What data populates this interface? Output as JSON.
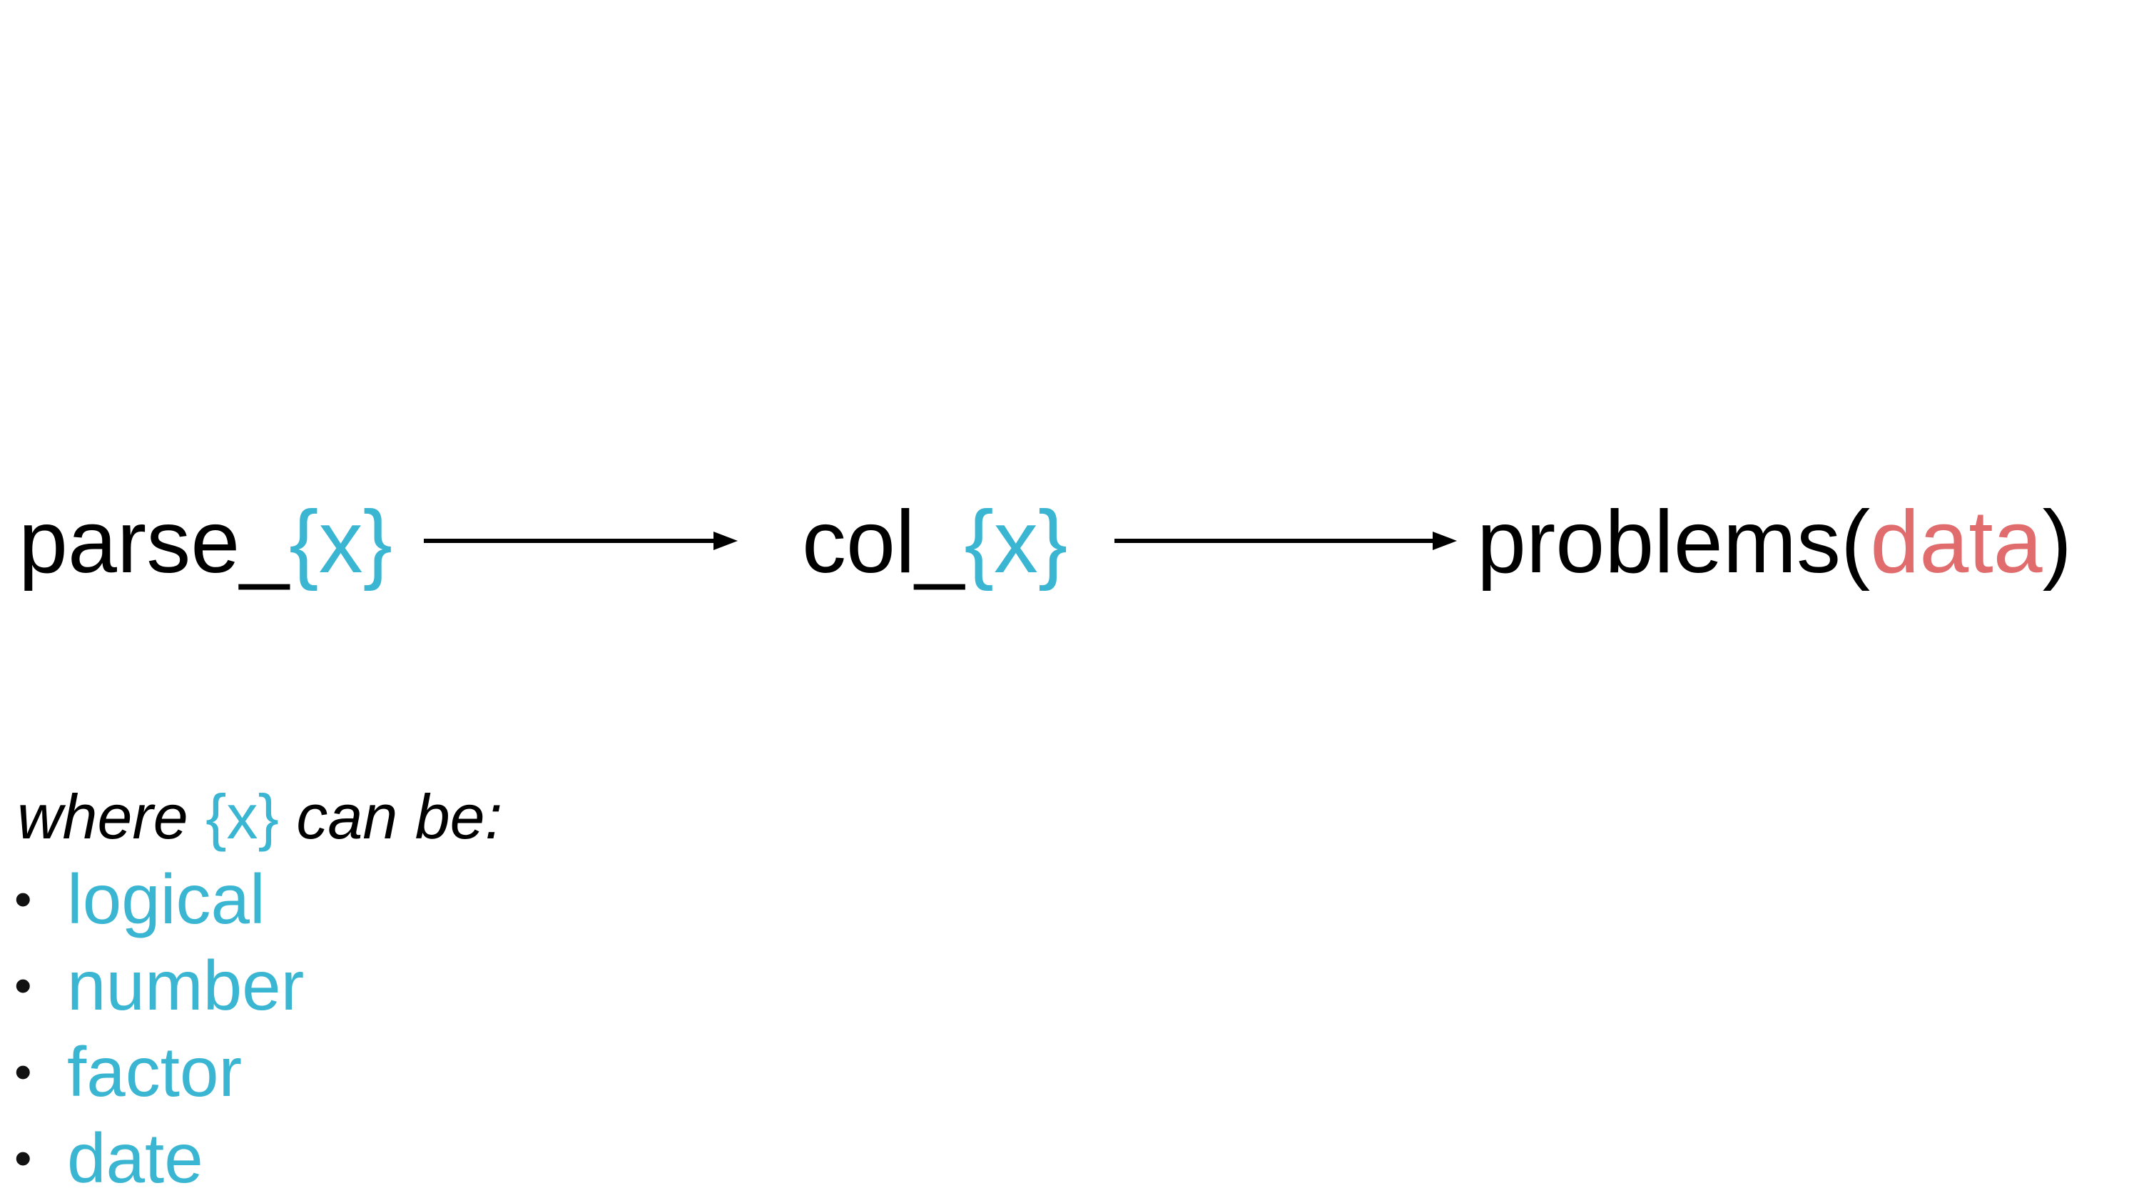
{
  "diagram": {
    "steps": [
      {
        "prefix": "parse_",
        "placeholder": "{x}"
      },
      {
        "prefix": "col_",
        "placeholder": "{x}"
      },
      {
        "prefix": "problems(",
        "argument": "data",
        "suffix": ")"
      }
    ],
    "note": {
      "before": "where ",
      "placeholder": "{x}",
      "after": " can be:"
    },
    "options": [
      "logical",
      "number",
      "factor",
      "date"
    ],
    "bullet_symbol": "•",
    "colors": {
      "text": "#000000",
      "placeholder": "#3bb6d2",
      "argument": "#e06c6e"
    }
  }
}
